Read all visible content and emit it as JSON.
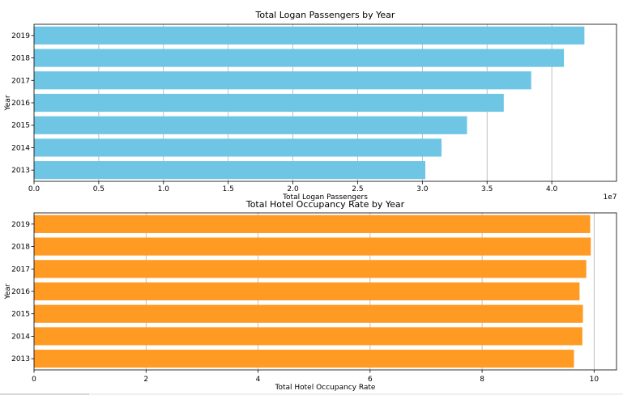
{
  "chart_data": [
    {
      "type": "bar",
      "orientation": "horizontal",
      "title": "Total Logan Passengers by Year",
      "xlabel": "Total Logan Passengers",
      "ylabel": "Year",
      "x_scale_label": "1e7",
      "categories": [
        "2013",
        "2014",
        "2015",
        "2016",
        "2017",
        "2018",
        "2019"
      ],
      "values": [
        30230000,
        31480000,
        33450000,
        36290000,
        38410000,
        40940000,
        42520000
      ],
      "xlim": [
        0,
        45000000
      ],
      "xticks": [
        0,
        5000000,
        10000000,
        15000000,
        20000000,
        25000000,
        30000000,
        35000000,
        40000000
      ],
      "xtick_labels": [
        "0.0",
        "0.5",
        "1.0",
        "1.5",
        "2.0",
        "2.5",
        "3.0",
        "3.5",
        "4.0"
      ],
      "grid": "x",
      "color": "#6ec6e4"
    },
    {
      "type": "bar",
      "orientation": "horizontal",
      "title": "Total Hotel Occupancy Rate by Year",
      "xlabel": "Total Hotel Occupancy Rate",
      "ylabel": "Year",
      "categories": [
        "2013",
        "2014",
        "2015",
        "2016",
        "2017",
        "2018",
        "2019"
      ],
      "values": [
        9.64,
        9.79,
        9.8,
        9.74,
        9.86,
        9.94,
        9.93
      ],
      "xlim": [
        0,
        10.4
      ],
      "xticks": [
        0,
        2,
        4,
        6,
        8,
        10
      ],
      "xtick_labels": [
        "0",
        "2",
        "4",
        "6",
        "8",
        "10"
      ],
      "grid": "x",
      "color": "#ff9a22"
    }
  ]
}
